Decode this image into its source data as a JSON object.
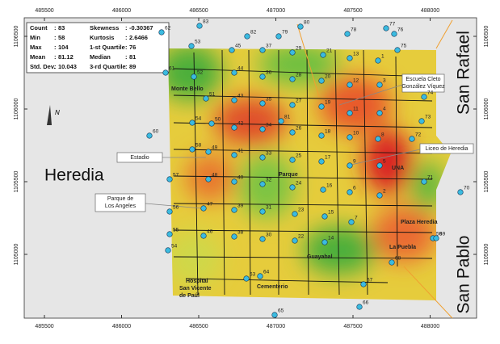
{
  "map": {
    "x_ticks": [
      485500,
      486000,
      486500,
      487000,
      487500,
      488000
    ],
    "y_ticks": [
      1106500,
      1106000,
      1105500,
      1105000
    ],
    "stats": [
      {
        "label": "Count",
        "value": 83
      },
      {
        "label": "Min",
        "value": 58
      },
      {
        "label": "Max",
        "value": 104
      },
      {
        "label": "Mean",
        "value": 81.12
      },
      {
        "label": "Std. Dev.",
        "value": 10.043
      },
      {
        "label": "Skewness",
        "value": -0.30367
      },
      {
        "label": "Kurtosis",
        "value": 2.6466
      },
      {
        "label": "1-st Quartile",
        "value": 76
      },
      {
        "label": "Median",
        "value": 81
      },
      {
        "label": "3-rd Quartile",
        "value": 89
      }
    ],
    "regions": [
      "Heredia",
      "San Rafael",
      "San Pablo"
    ],
    "places": [
      "Monte Bello",
      "Parque",
      "UNA",
      "Plaza Heredia",
      "La Puebla",
      "Guayabal",
      "Cementerio",
      "Hospital San Vicente de Paúl"
    ],
    "callouts": [
      "Estadio",
      "Parque de Los Angeles",
      "Escuela Cleto González Víquez",
      "Liceo de Heredia"
    ],
    "north": "N",
    "points": [
      1,
      2,
      3,
      4,
      5,
      6,
      7,
      8,
      9,
      10,
      11,
      12,
      13,
      14,
      15,
      16,
      17,
      18,
      19,
      20,
      21,
      22,
      23,
      24,
      25,
      26,
      27,
      28,
      29,
      30,
      31,
      32,
      33,
      34,
      35,
      36,
      37,
      38,
      39,
      40,
      41,
      42,
      43,
      44,
      45,
      46,
      47,
      48,
      49,
      50,
      51,
      52,
      53,
      54,
      55,
      56,
      57,
      58,
      59,
      60,
      61,
      62,
      63,
      64,
      65,
      66,
      67,
      68,
      69,
      70,
      71,
      72,
      73,
      74,
      75,
      76,
      77,
      78,
      79,
      80,
      81,
      82,
      83,
      54
    ]
  }
}
